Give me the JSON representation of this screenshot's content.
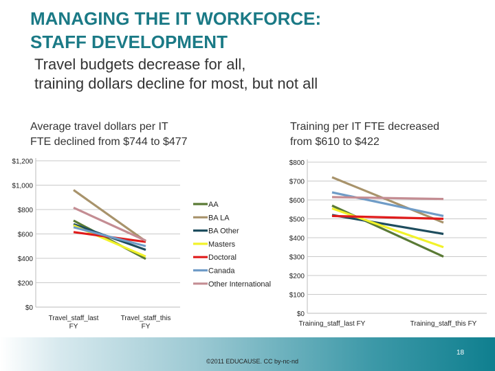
{
  "slide": {
    "title_line1": "MANAGING THE IT WORKFORCE:",
    "title_line2": "STAFF DEVELOPMENT",
    "subtitle_line1": "Travel budgets decrease for all,",
    "subtitle_line2": "training dollars decline for most, but not all",
    "left_caption_line1": "Average travel dollars per IT",
    "left_caption_line2": "FTE declined from $744 to $477",
    "right_caption_line1": "Training per IT FTE decreased",
    "right_caption_line2": "from $610 to $422",
    "footer": "©2011 EDUCAUSE. CC by-nc-nd",
    "page_number": "18",
    "accent_color": "#1b7a86"
  },
  "legend": [
    {
      "name": "AA",
      "color": "#5a7a35"
    },
    {
      "name": "BA LA",
      "color": "#a8936b"
    },
    {
      "name": "BA Other",
      "color": "#1e4d5e"
    },
    {
      "name": "Masters",
      "color": "#f2f22a"
    },
    {
      "name": "Doctoral",
      "color": "#e01b1b"
    },
    {
      "name": "Canada",
      "color": "#6f9cc7"
    },
    {
      "name": "Other International",
      "color": "#c48d93"
    }
  ],
  "chart_data": [
    {
      "type": "line",
      "title": "Average travel dollars per IT FTE",
      "categories": [
        "Travel_staff_last FY",
        "Travel_staff_this FY"
      ],
      "yticks": [
        "$0",
        "$200",
        "$400",
        "$600",
        "$800",
        "$1,000",
        "$1,200"
      ],
      "ylim": [
        0,
        1200
      ],
      "grid": true,
      "legend_position": "right",
      "series": [
        {
          "name": "AA",
          "values": [
            710,
            395
          ]
        },
        {
          "name": "BA LA",
          "values": [
            960,
            540
          ]
        },
        {
          "name": "BA Other",
          "values": [
            680,
            470
          ]
        },
        {
          "name": "Masters",
          "values": [
            670,
            415
          ]
        },
        {
          "name": "Doctoral",
          "values": [
            615,
            535
          ]
        },
        {
          "name": "Canada",
          "values": [
            655,
            500
          ]
        },
        {
          "name": "Other International",
          "values": [
            815,
            545
          ]
        }
      ]
    },
    {
      "type": "line",
      "title": "Training per IT FTE",
      "categories": [
        "Training_staff_last FY",
        "Training_staff_this FY"
      ],
      "yticks": [
        "$0",
        "$100",
        "$200",
        "$300",
        "$400",
        "$500",
        "$600",
        "$700",
        "$800"
      ],
      "ylim": [
        0,
        800
      ],
      "grid": true,
      "series": [
        {
          "name": "AA",
          "values": [
            570,
            300
          ]
        },
        {
          "name": "BA LA",
          "values": [
            720,
            480
          ]
        },
        {
          "name": "BA Other",
          "values": [
            520,
            420
          ]
        },
        {
          "name": "Masters",
          "values": [
            555,
            350
          ]
        },
        {
          "name": "Doctoral",
          "values": [
            515,
            500
          ]
        },
        {
          "name": "Canada",
          "values": [
            640,
            515
          ]
        },
        {
          "name": "Other International",
          "values": [
            615,
            605
          ]
        }
      ]
    }
  ]
}
